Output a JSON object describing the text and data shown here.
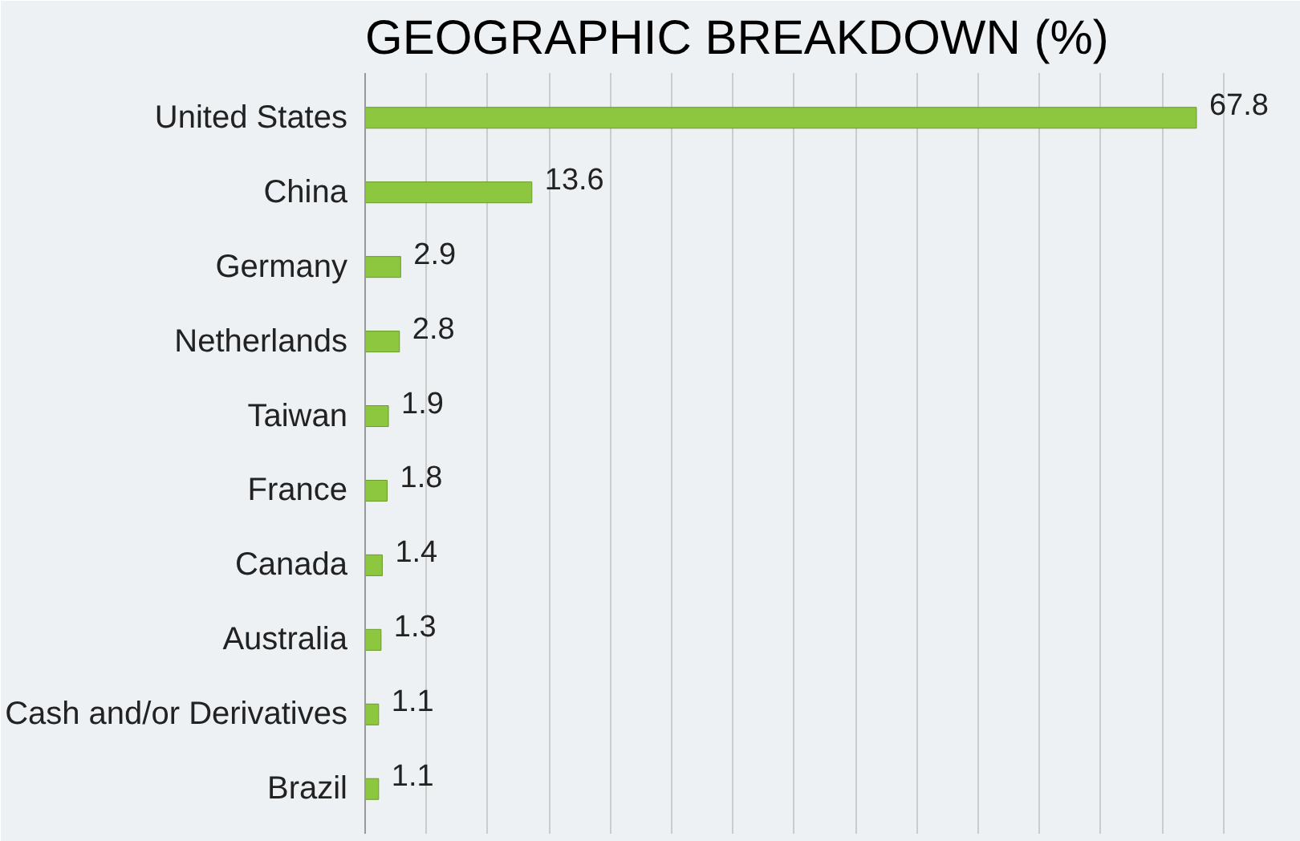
{
  "chart_data": {
    "type": "bar",
    "orientation": "horizontal",
    "title": "GEOGRAPHIC BREAKDOWN (%)",
    "categories": [
      "United States",
      "China",
      "Germany",
      "Netherlands",
      "Taiwan",
      "France",
      "Canada",
      "Australia",
      "Cash and/or Derivatives",
      "Brazil"
    ],
    "values": [
      67.8,
      13.6,
      2.9,
      2.8,
      1.9,
      1.8,
      1.4,
      1.3,
      1.1,
      1.1
    ],
    "color": "#8dc63f",
    "data_labels": true,
    "grid": "x",
    "tick_labels": "y",
    "xlim": [
      0,
      75
    ],
    "xticks": [
      {
        "value": 0,
        "label": null
      },
      {
        "value": 5,
        "label": null
      },
      {
        "value": 10,
        "label": null
      },
      {
        "value": 15,
        "label": null
      },
      {
        "value": 20,
        "label": null
      },
      {
        "value": 25,
        "label": null
      },
      {
        "value": 30,
        "label": null
      },
      {
        "value": 35,
        "label": null
      },
      {
        "value": 40,
        "label": null
      },
      {
        "value": 45,
        "label": null
      },
      {
        "value": 50,
        "label": null
      },
      {
        "value": 55,
        "label": null
      },
      {
        "value": 60,
        "label": null
      },
      {
        "value": 65,
        "label": null
      },
      {
        "value": 70,
        "label": null
      },
      {
        "value": 75,
        "label": null
      }
    ]
  }
}
